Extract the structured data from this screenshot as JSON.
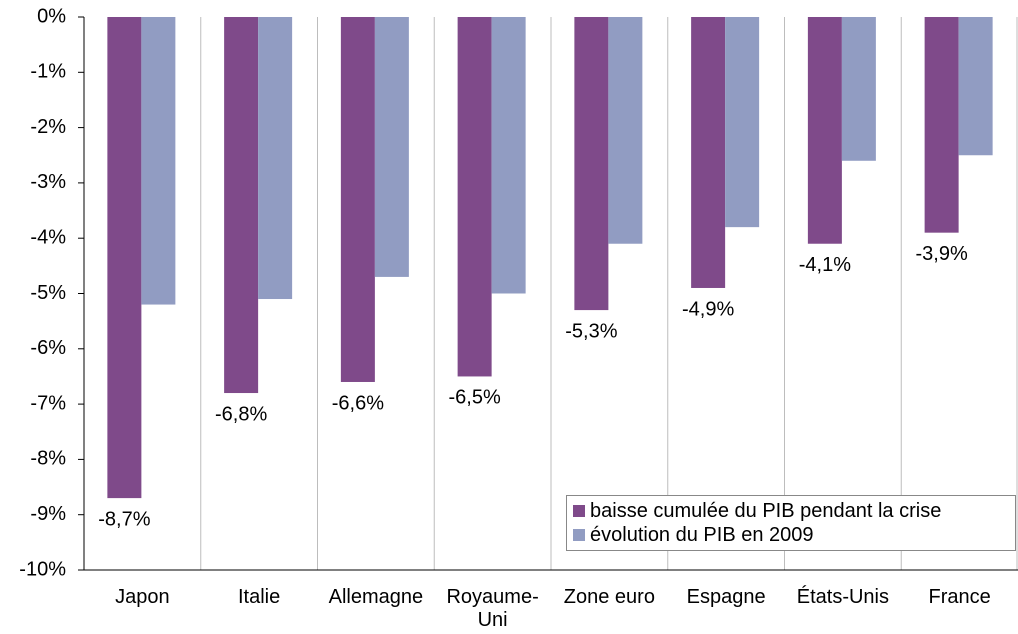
{
  "chart_data": {
    "type": "bar",
    "categories": [
      "Japon",
      "Italie",
      "Allemagne",
      "Royaume-Uni",
      "Zone euro",
      "Espagne",
      "États-Unis",
      "France"
    ],
    "series": [
      {
        "name": "baisse cumulée du PIB pendant la crise",
        "color": "#7f4a8a",
        "values": [
          -8.7,
          -6.8,
          -6.6,
          -6.5,
          -5.3,
          -4.9,
          -4.1,
          -3.9
        ],
        "value_labels": [
          "-8,7%",
          "-6,8%",
          "-6,6%",
          "-6,5%",
          "-5,3%",
          "-4,9%",
          "-4,1%",
          "-3,9%"
        ]
      },
      {
        "name": "évolution du PIB en 2009",
        "color": "#919cc2",
        "values": [
          -5.2,
          -5.1,
          -4.7,
          -5.0,
          -4.1,
          -3.8,
          -2.6,
          -2.5
        ]
      }
    ],
    "ylim": [
      -10,
      0
    ],
    "yticks": [
      {
        "value": 0,
        "label": "0%"
      },
      {
        "value": -1,
        "label": "-1%"
      },
      {
        "value": -2,
        "label": "-2%"
      },
      {
        "value": -3,
        "label": "-3%"
      },
      {
        "value": -4,
        "label": "-4%"
      },
      {
        "value": -5,
        "label": "-5%"
      },
      {
        "value": -6,
        "label": "-6%"
      },
      {
        "value": -7,
        "label": "-7%"
      },
      {
        "value": -8,
        "label": "-8%"
      },
      {
        "value": -9,
        "label": "-9%"
      },
      {
        "value": -10,
        "label": "-10%"
      }
    ],
    "grid": true,
    "legend": "lower right"
  }
}
